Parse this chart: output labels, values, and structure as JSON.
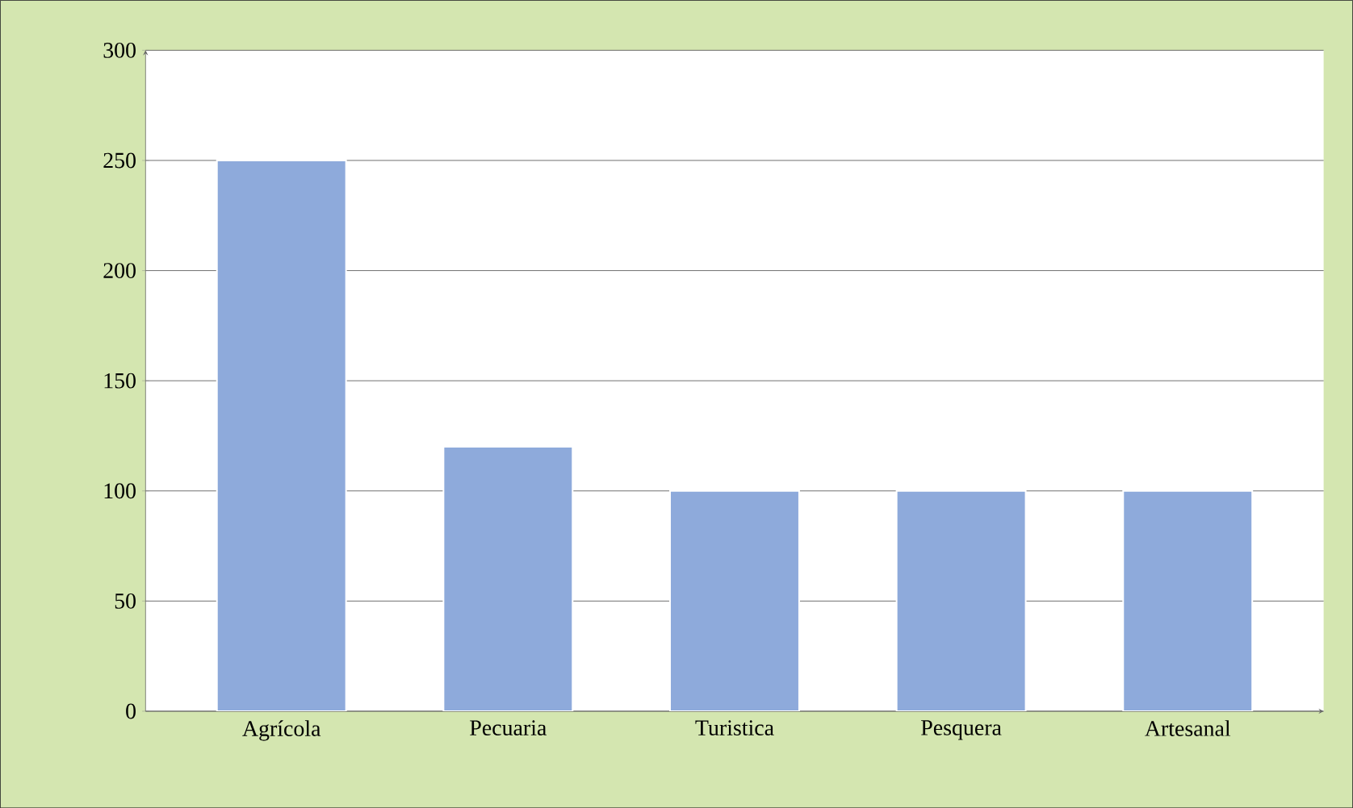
{
  "chart_data": {
    "type": "bar",
    "categories": [
      "Agrícola",
      "Pecuaria",
      "Turistica",
      "Pesquera",
      "Artesanal"
    ],
    "values": [
      250,
      120,
      100,
      100,
      100
    ],
    "color": "#8eaadb",
    "ylim": [
      0,
      300
    ],
    "yticks": [
      0,
      50,
      100,
      150,
      200,
      250,
      300
    ],
    "grid": "y"
  }
}
